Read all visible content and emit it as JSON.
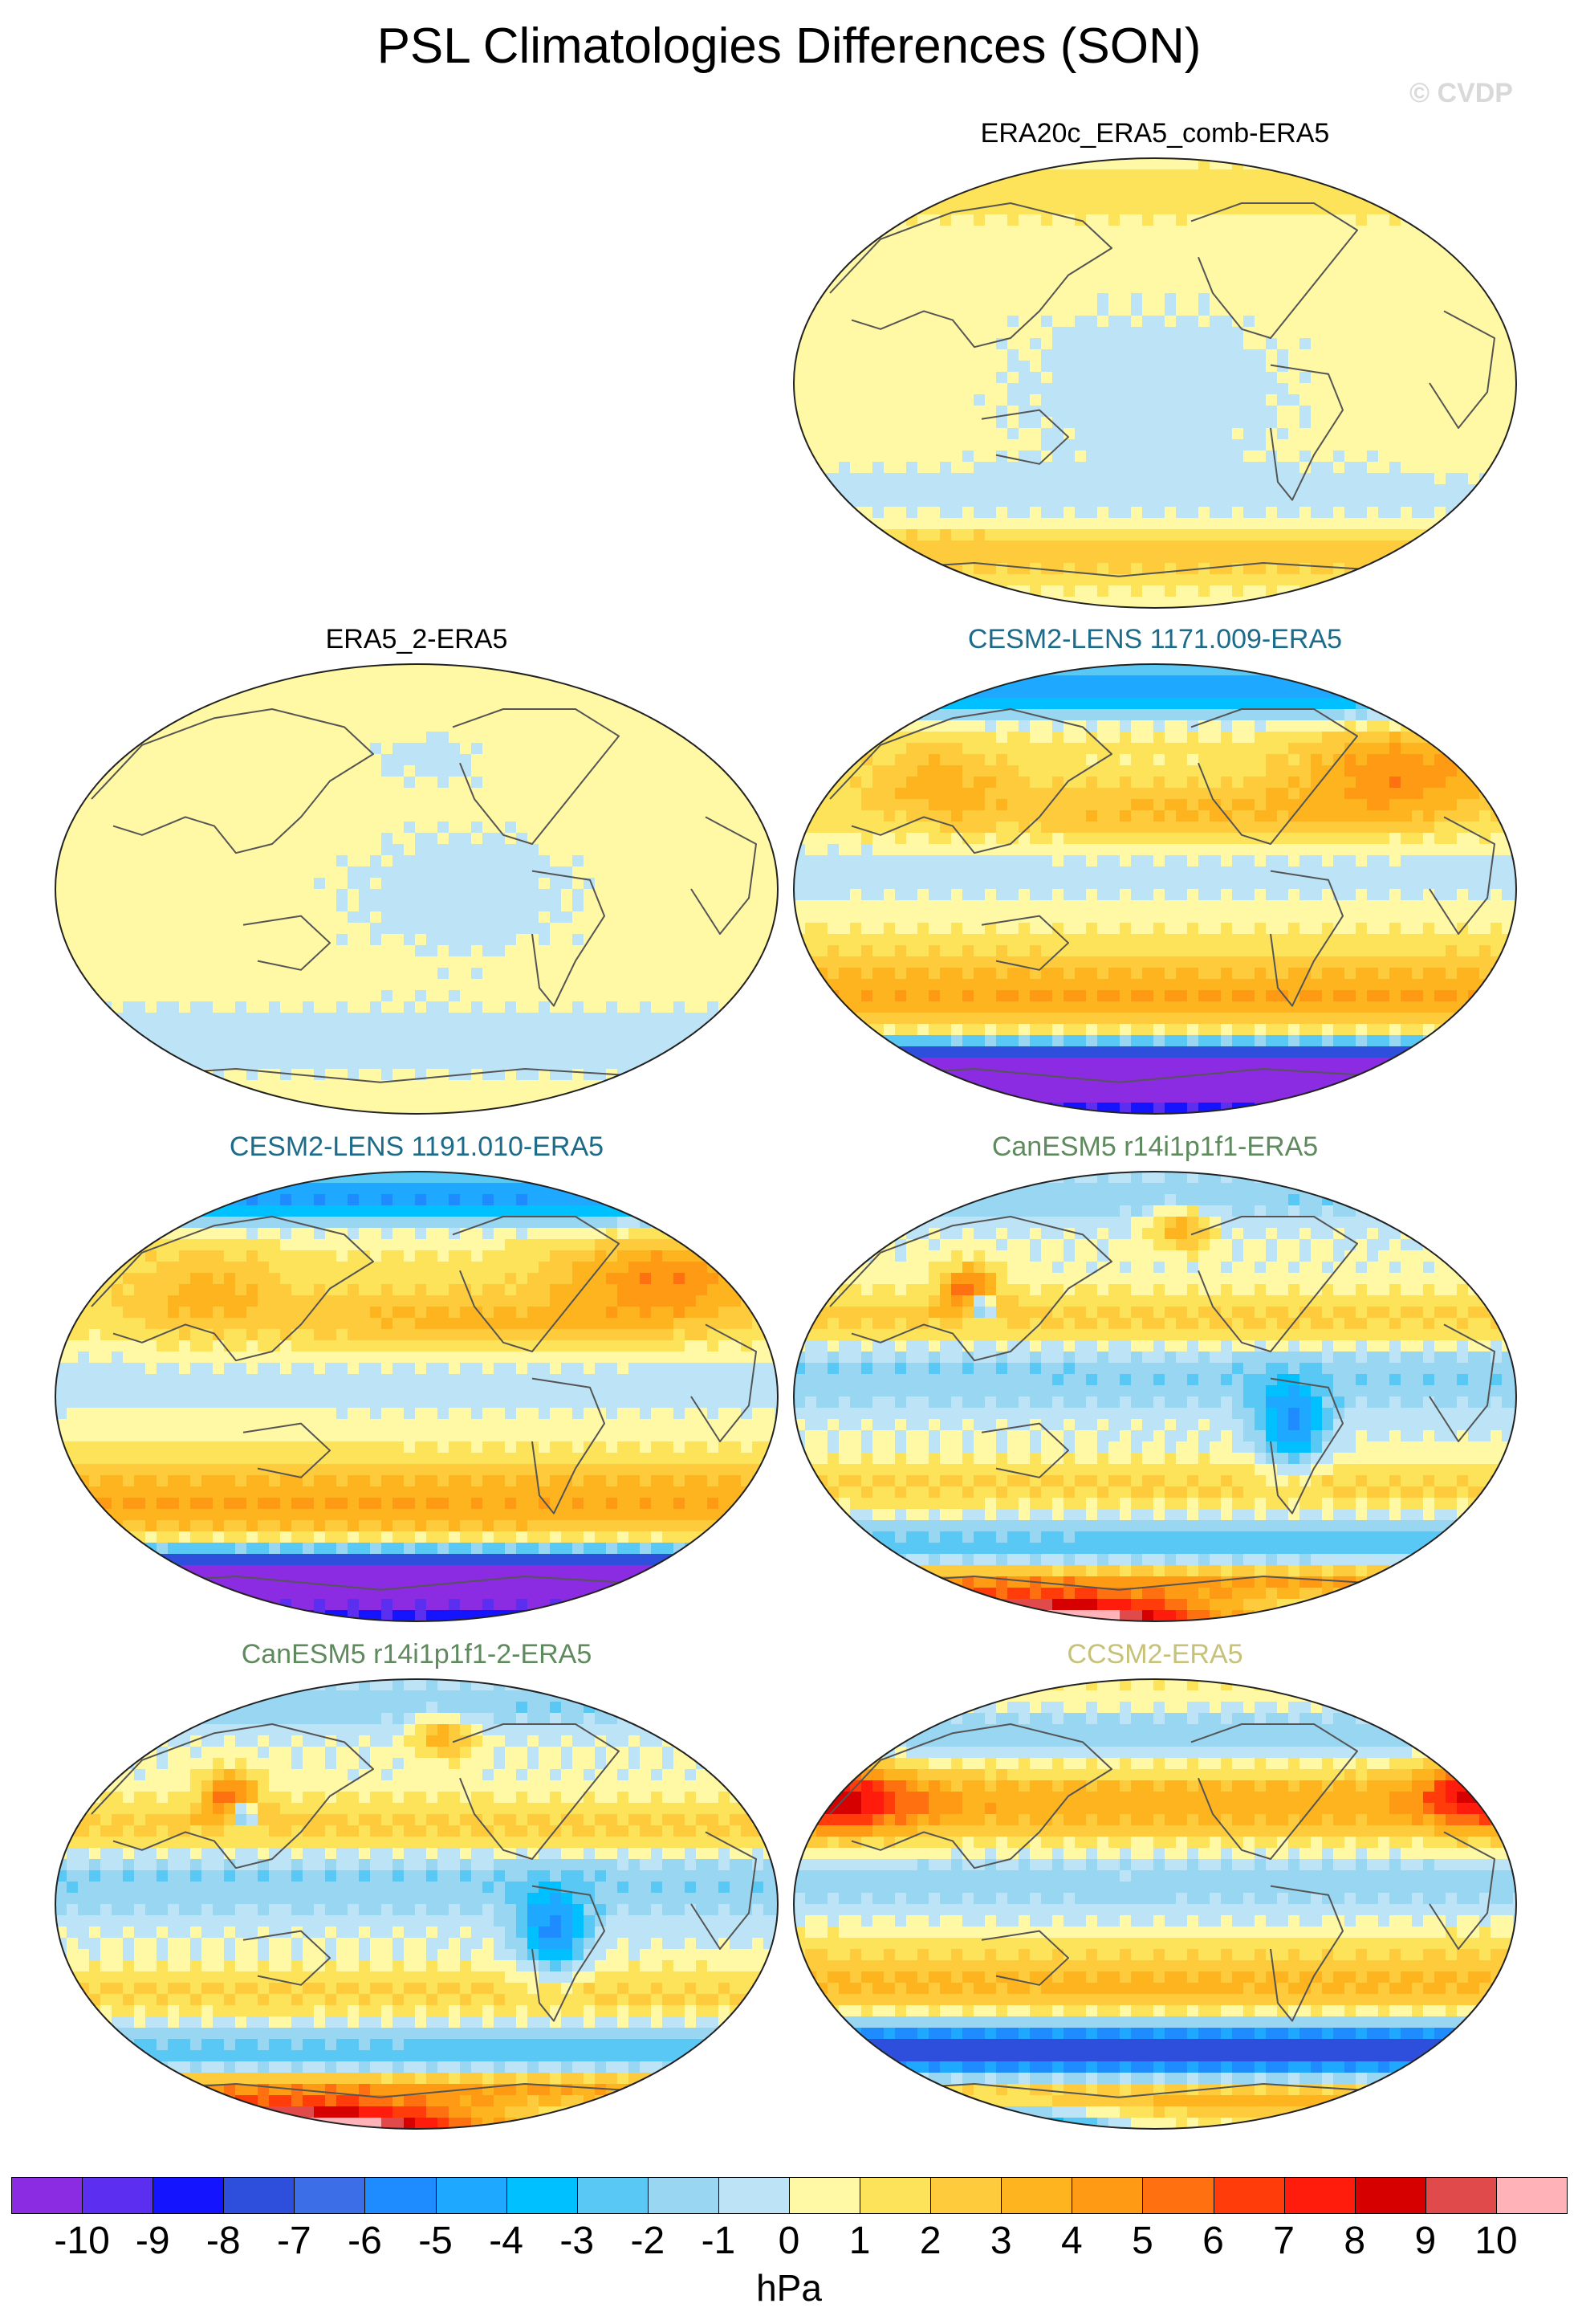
{
  "title": "PSL Climatologies Differences (SON)",
  "watermark": "© CVDP",
  "units": "hPa",
  "panels": [
    {
      "label": "ERA20c_ERA5_comb-ERA5",
      "color": "#000000",
      "scheme": "small",
      "seed": 3
    },
    {
      "label": "ERA5_2-ERA5",
      "color": "#000000",
      "scheme": "tiny",
      "seed": 7
    },
    {
      "label": "CESM2-LENS 1171.009-ERA5",
      "color": "#1c6b8a",
      "scheme": "cesm",
      "seed": 11
    },
    {
      "label": "CESM2-LENS 1191.010-ERA5",
      "color": "#1c6b8a",
      "scheme": "cesm",
      "seed": 19
    },
    {
      "label": "CanESM5 r14i1p1f1-ERA5",
      "color": "#5e8a5e",
      "scheme": "canesm",
      "seed": 23
    },
    {
      "label": "CanESM5 r14i1p1f1-2-ERA5",
      "color": "#5e8a5e",
      "scheme": "canesm",
      "seed": 29
    },
    {
      "label": "CCSM2-ERA5",
      "color": "#c7c27a",
      "scheme": "ccsm",
      "seed": 31
    }
  ],
  "colorbar": {
    "colors": [
      "#8b2be2",
      "#5b2ef0",
      "#1414ff",
      "#2d4fdb",
      "#3c6ee8",
      "#1e8cff",
      "#1ea8ff",
      "#00c0ff",
      "#5ac8f5",
      "#98d6f2",
      "#bce4f6",
      "#fff8a4",
      "#fde35a",
      "#fdcb3c",
      "#fdb41e",
      "#ff9a14",
      "#ff7010",
      "#ff3c0a",
      "#ff1c0c",
      "#d70000",
      "#e04a4a",
      "#ffb3b8"
    ],
    "labels": [
      "-10",
      "-9",
      "-8",
      "-7",
      "-6",
      "-5",
      "-4",
      "-3",
      "-2",
      "-1",
      "0",
      "1",
      "2",
      "3",
      "4",
      "5",
      "6",
      "7",
      "8",
      "9",
      "10"
    ]
  }
}
